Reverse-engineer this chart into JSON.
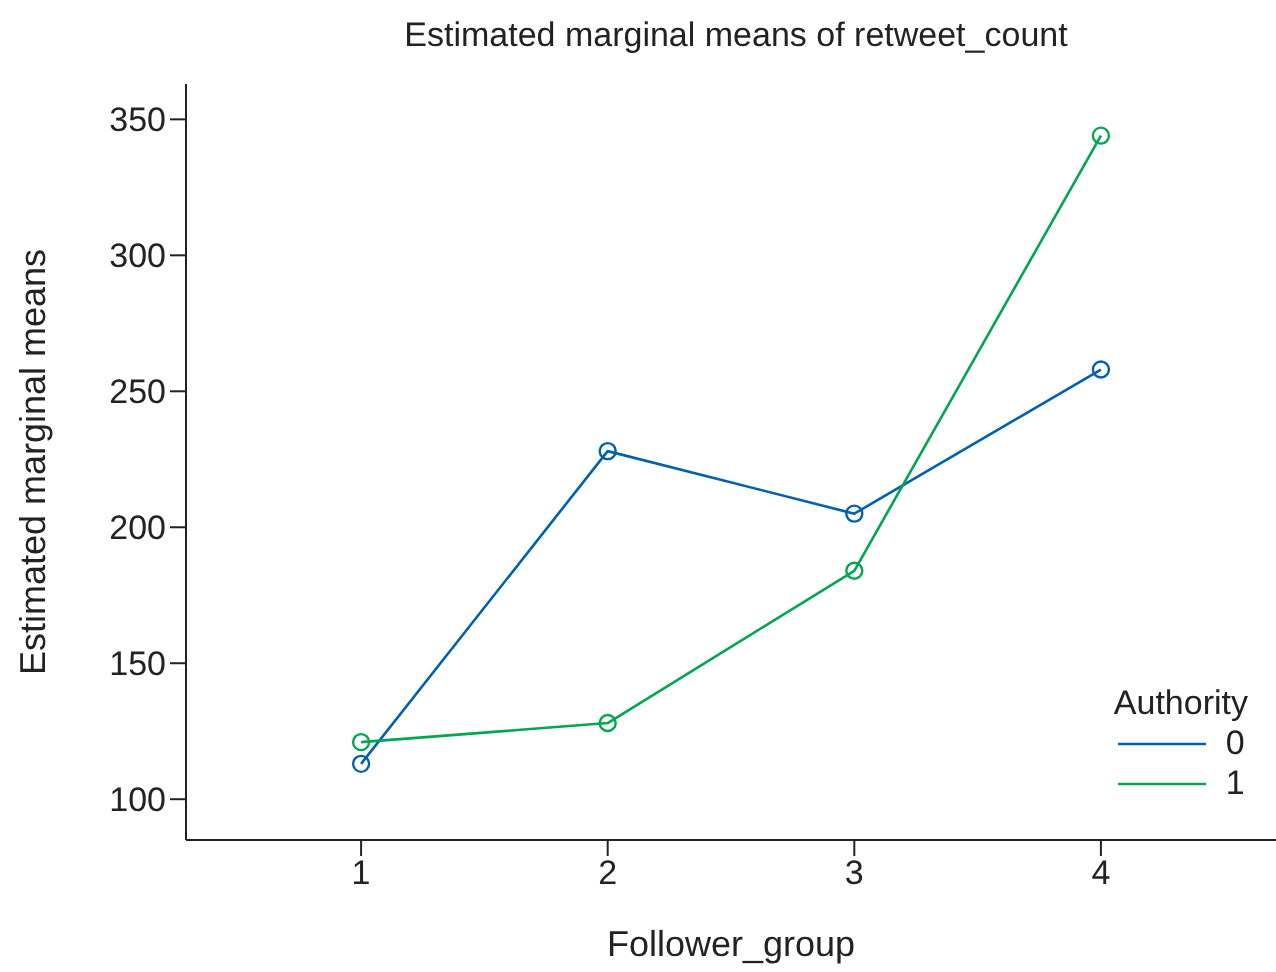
{
  "chart_data": {
    "type": "line",
    "title": "Estimated marginal means of retweet_count",
    "xlabel": "Follower_group",
    "ylabel": "Estimated marginal means",
    "legend_title": "Authority",
    "categories": [
      "1",
      "2",
      "3",
      "4"
    ],
    "series": [
      {
        "name": "0",
        "color": "#0060b0",
        "values": [
          113,
          228,
          205,
          258
        ]
      },
      {
        "name": "1",
        "color": "#00a650",
        "values": [
          121,
          128,
          184,
          344
        ]
      }
    ],
    "ylim": [
      85,
      363
    ],
    "yticks": [
      100,
      150,
      200,
      250,
      300,
      350
    ],
    "grid": false,
    "legend": "bottom right",
    "marker": "circle",
    "line_style": "solid"
  }
}
